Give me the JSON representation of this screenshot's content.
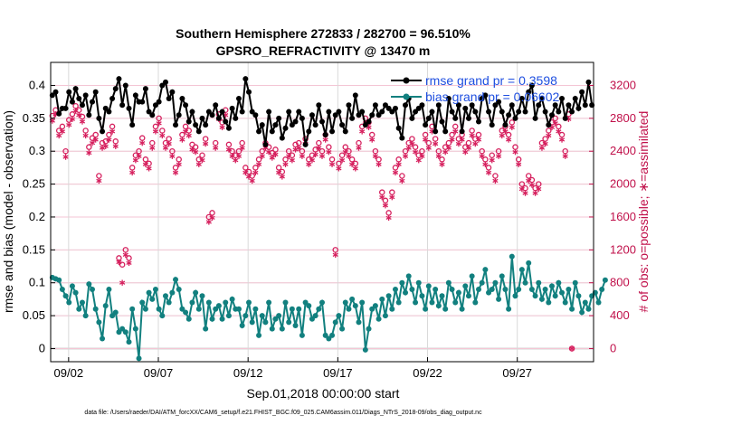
{
  "chart_data": {
    "type": "line",
    "title": "Southern Hemisphere 272833 / 282700 = 96.510%",
    "subtitle": "GPSRO_REFRACTIVITY @ 13470 m",
    "xlabel": "Sep.01,2018 00:00:00 start",
    "ylabel": "rmse and bias (model - observation)",
    "y2label": "# of obs: o=possible; ∗=assimilated",
    "footnote": "data file: /Users/raeder/DAI/ATM_forcXX/CAM6_setup/f.e21.FHIST_BGC.f09_025.CAM6assim.011/Diags_NTrS_2018-09/obs_diag_output.nc",
    "x_ticks": [
      "09/02",
      "09/07",
      "09/12",
      "09/17",
      "09/22",
      "09/27"
    ],
    "x_tick_days": [
      2,
      7,
      12,
      17,
      22,
      27
    ],
    "xlim_days": [
      1,
      31.25
    ],
    "y_ticks": [
      "0",
      "0.05",
      "0.1",
      "0.15",
      "0.2",
      "0.25",
      "0.3",
      "0.35",
      "0.4"
    ],
    "ylim": [
      -0.02,
      0.435
    ],
    "y2_ticks": [
      "0",
      "400",
      "800",
      "1200",
      "1600",
      "2000",
      "2400",
      "2800",
      "3200"
    ],
    "y2lim": [
      -160,
      3480
    ],
    "grid": true,
    "legend_position": "top-right",
    "series": [
      {
        "name": "rmse grand pr = 0.3598",
        "axis": "left",
        "color": "#000000",
        "marker": "filled-circle",
        "values": [
          0.385,
          0.39,
          0.357,
          0.365,
          0.365,
          0.39,
          0.375,
          0.395,
          0.38,
          0.37,
          0.385,
          0.355,
          0.375,
          0.39,
          0.35,
          0.33,
          0.365,
          0.36,
          0.38,
          0.395,
          0.41,
          0.37,
          0.4,
          0.365,
          0.34,
          0.385,
          0.375,
          0.375,
          0.395,
          0.36,
          0.355,
          0.37,
          0.375,
          0.4,
          0.405,
          0.38,
          0.39,
          0.34,
          0.355,
          0.38,
          0.37,
          0.345,
          0.36,
          0.34,
          0.33,
          0.35,
          0.34,
          0.36,
          0.355,
          0.37,
          0.35,
          0.36,
          0.345,
          0.335,
          0.365,
          0.35,
          0.38,
          0.36,
          0.41,
          0.39,
          0.36,
          0.355,
          0.33,
          0.34,
          0.31,
          0.36,
          0.33,
          0.34,
          0.35,
          0.32,
          0.335,
          0.36,
          0.34,
          0.345,
          0.36,
          0.35,
          0.31,
          0.33,
          0.355,
          0.34,
          0.37,
          0.345,
          0.325,
          0.36,
          0.33,
          0.355,
          0.36,
          0.34,
          0.33,
          0.37,
          0.35,
          0.385,
          0.355,
          0.36,
          0.34,
          0.345,
          0.355,
          0.37,
          0.355,
          0.36,
          0.37,
          0.365,
          0.36,
          0.365,
          0.335,
          0.32,
          0.37,
          0.38,
          0.35,
          0.36,
          0.365,
          0.37,
          0.34,
          0.35,
          0.36,
          0.33,
          0.37,
          0.345,
          0.33,
          0.38,
          0.36,
          0.35,
          0.37,
          0.33,
          0.365,
          0.35,
          0.37,
          0.36,
          0.345,
          0.38,
          0.385,
          0.36,
          0.34,
          0.37,
          0.375,
          0.36,
          0.34,
          0.355,
          0.37,
          0.35,
          0.36,
          0.38,
          0.36,
          0.39,
          0.4,
          0.35,
          0.37,
          0.38,
          0.36,
          0.34,
          0.355,
          0.37,
          0.36,
          0.38,
          0.35,
          0.37,
          0.36,
          0.38,
          0.365,
          0.39,
          0.37,
          0.405,
          0.37
        ]
      },
      {
        "name": "bias grand pr = 0.06602",
        "axis": "left",
        "color": "#12807f",
        "marker": "filled-circle",
        "values": [
          0.108,
          0.106,
          0.104,
          0.09,
          0.08,
          0.07,
          0.095,
          0.085,
          0.06,
          0.07,
          0.05,
          0.098,
          0.09,
          0.06,
          0.04,
          0.015,
          0.065,
          0.09,
          0.05,
          0.055,
          0.025,
          0.03,
          0.025,
          0.01,
          0.06,
          0.03,
          -0.015,
          0.07,
          0.06,
          0.085,
          0.075,
          0.09,
          0.06,
          0.05,
          0.08,
          0.07,
          0.085,
          0.105,
          0.09,
          0.06,
          0.055,
          0.045,
          0.07,
          0.085,
          0.06,
          0.08,
          0.03,
          0.07,
          0.045,
          0.06,
          0.065,
          0.045,
          0.07,
          0.05,
          0.075,
          0.06,
          0.06,
          0.035,
          0.05,
          0.07,
          0.04,
          0.06,
          0.02,
          0.05,
          0.04,
          0.07,
          0.03,
          0.045,
          0.05,
          0.03,
          0.07,
          0.04,
          0.06,
          0.035,
          0.06,
          0.02,
          0.07,
          0.065,
          0.045,
          0.05,
          0.06,
          0.07,
          0.02,
          0.015,
          0.02,
          0.04,
          0.05,
          0.03,
          0.07,
          0.06,
          0.075,
          0.065,
          0.04,
          0.07,
          -0.002,
          0.03,
          0.06,
          0.065,
          0.045,
          0.075,
          0.05,
          0.08,
          0.06,
          0.09,
          0.07,
          0.1,
          0.085,
          0.11,
          0.09,
          0.07,
          0.1,
          0.08,
          0.06,
          0.095,
          0.07,
          0.09,
          0.065,
          0.08,
          0.06,
          0.1,
          0.09,
          0.07,
          0.085,
          0.06,
          0.095,
          0.08,
          0.11,
          0.07,
          0.09,
          0.1,
          0.12,
          0.085,
          0.09,
          0.1,
          0.075,
          0.11,
          0.09,
          0.06,
          0.14,
          0.08,
          0.09,
          0.12,
          0.1,
          0.13,
          0.09,
          0.08,
          0.1,
          0.075,
          0.09,
          0.07,
          0.095,
          0.08,
          0.1,
          0.085,
          0.07,
          0.09,
          0.06,
          0.1,
          0.08,
          0.055,
          0.07,
          0.06,
          0.08,
          0.085,
          0.07,
          0.09,
          0.104
        ]
      },
      {
        "name": "possible",
        "axis": "right",
        "color": "#d6205e",
        "marker": "open-circle",
        "values": [
          2830,
          2900,
          2650,
          2700,
          2400,
          2780,
          2850,
          2950,
          2900,
          2820,
          2650,
          2450,
          2560,
          2600,
          2100,
          2500,
          2520,
          2600,
          2700,
          2520,
          1100,
          1020,
          1200,
          1100,
          2200,
          2350,
          2400,
          2560,
          2300,
          2250,
          2500,
          2700,
          2800,
          2650,
          2500,
          2550,
          2400,
          2200,
          2300,
          2600,
          2700,
          2650,
          2480,
          2450,
          2300,
          2350,
          2550,
          1600,
          1650,
          2500,
          2850,
          2750,
          2900,
          2480,
          2400,
          2350,
          2400,
          2500,
          2200,
          2150,
          2100,
          2200,
          2300,
          2400,
          2500,
          2450,
          2380,
          2420,
          2200,
          2150,
          2300,
          2400,
          2350,
          2480,
          2500,
          2400,
          2550,
          2300,
          2350,
          2420,
          2500,
          2400,
          2600,
          2450,
          2300,
          1200,
          2250,
          2350,
          2450,
          2400,
          2300,
          2250,
          2500,
          2700,
          2800,
          2750,
          2600,
          2400,
          2300,
          1900,
          1800,
          1650,
          1900,
          2200,
          2300,
          2100,
          2400,
          2500,
          2550,
          2450,
          2350,
          2400,
          2600,
          2500,
          2700,
          2550,
          2400,
          2300,
          2450,
          2500,
          2600,
          2700,
          2550,
          2600,
          2450,
          2500,
          2650,
          2550,
          2600,
          2400,
          2300,
          2200,
          2350,
          2100,
          2400,
          2650,
          2700,
          2600,
          2750,
          2450,
          2300,
          2000,
          1950,
          2100,
          2050,
          1950,
          2000,
          2500,
          2550,
          2650,
          2750,
          2800,
          2700,
          2600,
          2400,
          2850,
          0
        ]
      },
      {
        "name": "assimilated",
        "axis": "right",
        "color": "#d6205e",
        "marker": "asterisk",
        "values": [
          2770,
          2850,
          2590,
          2640,
          2330,
          2720,
          2790,
          2890,
          2840,
          2760,
          2590,
          2380,
          2500,
          2540,
          2040,
          2440,
          2460,
          2540,
          2640,
          2460,
          1050,
          800,
          1140,
          1040,
          2140,
          2290,
          2340,
          2500,
          2240,
          2190,
          2440,
          2640,
          2740,
          2590,
          2440,
          2490,
          2340,
          2140,
          2240,
          2540,
          2640,
          2590,
          2420,
          2390,
          2240,
          2290,
          2490,
          1540,
          1590,
          2440,
          2790,
          2690,
          2840,
          2420,
          2340,
          2290,
          2340,
          2440,
          2140,
          2090,
          2040,
          2140,
          2240,
          2340,
          2440,
          2390,
          2320,
          2360,
          2140,
          2090,
          2240,
          2340,
          2290,
          2420,
          2440,
          2340,
          2490,
          2240,
          2290,
          2360,
          2440,
          2340,
          2540,
          2390,
          2240,
          1140,
          2190,
          2290,
          2390,
          2340,
          2240,
          2190,
          2440,
          2640,
          2740,
          2690,
          2540,
          2340,
          2240,
          1840,
          1740,
          1590,
          1840,
          2140,
          2240,
          2040,
          2340,
          2440,
          2490,
          2390,
          2290,
          2340,
          2540,
          2440,
          2640,
          2490,
          2340,
          2240,
          2390,
          2440,
          2540,
          2640,
          2490,
          2540,
          2390,
          2440,
          2590,
          2490,
          2540,
          2340,
          2240,
          2140,
          2290,
          2040,
          2340,
          2590,
          2640,
          2540,
          2690,
          2390,
          2240,
          1940,
          1890,
          2040,
          1990,
          1890,
          1940,
          2440,
          2490,
          2590,
          2690,
          2740,
          2640,
          2540,
          2340,
          2790,
          0
        ]
      }
    ]
  }
}
